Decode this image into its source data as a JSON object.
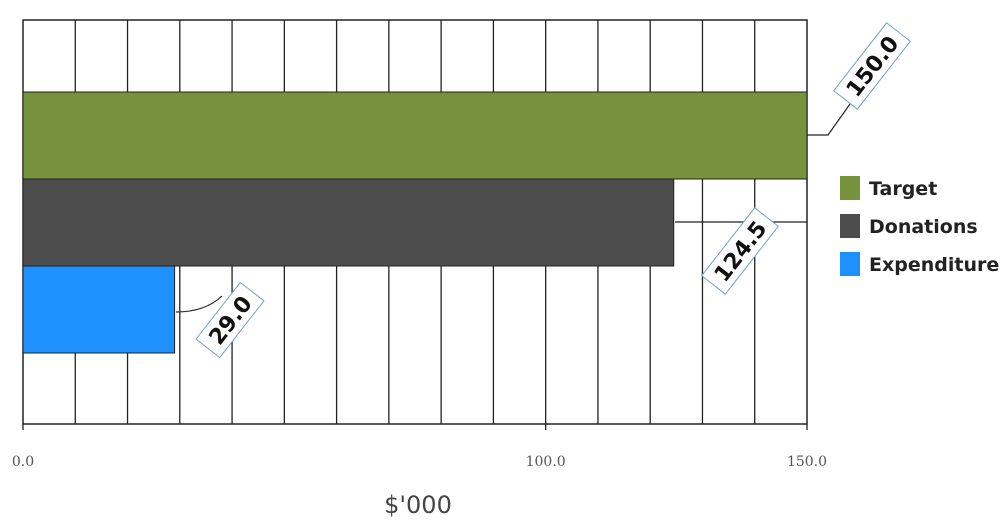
{
  "chart_data": {
    "type": "bar",
    "orientation": "horizontal",
    "title": "",
    "xlabel": "$'000",
    "ylabel": "",
    "xlim": [
      0,
      150
    ],
    "x_ticks": [
      0,
      100,
      150
    ],
    "x_tick_labels": [
      "0.0",
      "100.0",
      "150.0"
    ],
    "grid": true,
    "legend_position": "right",
    "series": [
      {
        "name": "Target",
        "value": 150.0,
        "label": "150.0",
        "color": "#76923c"
      },
      {
        "name": "Donations",
        "value": 124.5,
        "label": "124.5",
        "color": "#4d4d4d"
      },
      {
        "name": "Expenditure",
        "value": 29.0,
        "label": "29.0",
        "color": "#1e90ff"
      }
    ]
  }
}
